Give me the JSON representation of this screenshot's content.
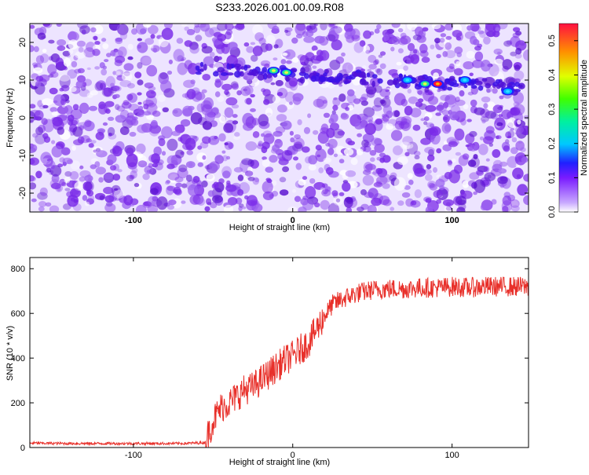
{
  "title": "S233.2026.001.00.09.R08",
  "chart_data": [
    {
      "type": "heatmap",
      "xlabel": "Height of straight line (km)",
      "ylabel": "Frequency (Hz)",
      "xlim": [
        -165,
        148
      ],
      "ylim": [
        -25,
        25
      ],
      "x_ticks": [
        -100,
        0,
        100
      ],
      "y_ticks": [
        -20,
        -10,
        0,
        10,
        20
      ],
      "x_tick_labels": [
        "-100",
        "0",
        "100"
      ],
      "y_tick_labels": [
        "-20",
        "-10",
        "0",
        "10",
        "20"
      ],
      "colorbar": {
        "label": "Normalized spectral amplitude",
        "range": [
          0,
          0.55
        ],
        "ticks": [
          0.0,
          0.1,
          0.2,
          0.3,
          0.4,
          0.5
        ],
        "tick_labels": [
          "0.0",
          "0.1",
          "0.2",
          "0.3",
          "0.4",
          "0.5"
        ]
      },
      "signal_band": {
        "description_frequency_hz": [
          9,
          13
        ],
        "peaks": [
          {
            "x": -12,
            "y": 12.5,
            "amplitude": 0.28
          },
          {
            "x": -4,
            "y": 12,
            "amplitude": 0.28
          },
          {
            "x": 83,
            "y": 9,
            "amplitude": 0.3
          },
          {
            "x": 91,
            "y": 9,
            "amplitude": 0.55
          },
          {
            "x": 72,
            "y": 10,
            "amplitude": 0.15
          },
          {
            "x": 108,
            "y": 10,
            "amplitude": 0.13
          },
          {
            "x": 135,
            "y": 7,
            "amplitude": 0.12
          }
        ]
      }
    },
    {
      "type": "line",
      "xlabel": "Height of straight line (km)",
      "ylabel": "SNR (10 * v/v)",
      "xlim": [
        -165,
        148
      ],
      "ylim": [
        0,
        850
      ],
      "x_ticks": [
        -100,
        0,
        100
      ],
      "y_ticks": [
        0,
        200,
        400,
        600,
        800
      ],
      "x_tick_labels": [
        "-100",
        "0",
        "100"
      ],
      "y_tick_labels": [
        "0",
        "200",
        "400",
        "600",
        "800"
      ],
      "color": "#e8302a",
      "series": [
        {
          "x": [
            -165,
            -140,
            -100,
            -70,
            -55,
            -50,
            -45,
            -40,
            -35,
            -30,
            -25,
            -20,
            -15,
            -10,
            -5,
            0,
            5,
            10,
            15,
            20,
            25,
            30,
            40,
            50,
            60,
            70,
            80,
            90,
            100,
            110,
            120,
            130,
            140,
            148
          ],
          "values": [
            20,
            18,
            18,
            18,
            22,
            120,
            180,
            200,
            230,
            260,
            270,
            300,
            330,
            360,
            390,
            410,
            440,
            470,
            530,
            590,
            640,
            660,
            690,
            705,
            710,
            710,
            715,
            715,
            720,
            715,
            720,
            720,
            720,
            720
          ]
        }
      ]
    }
  ]
}
